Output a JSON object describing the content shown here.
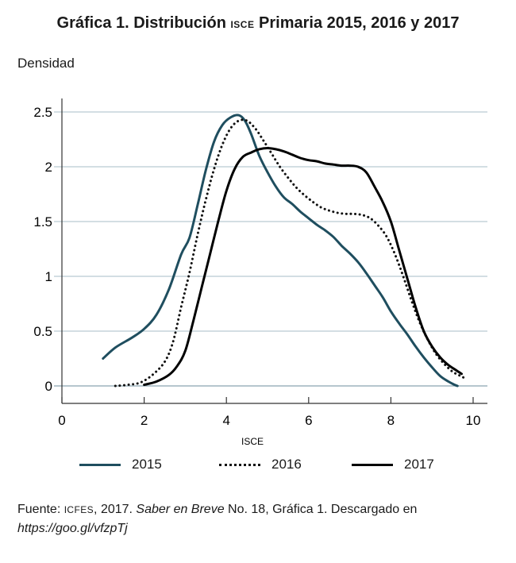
{
  "title": {
    "prefix": "Gráfica 1. Distribución",
    "smallcaps": "ISCE",
    "suffix": "Primaria 2015, 2016 y 2017"
  },
  "source": {
    "p1": "Fuente: ",
    "sc": "ICFES",
    "p2": ", 2017. ",
    "italic1": "Saber en Breve",
    "p3": " No. 18, Gráfica 1. Descargado en ",
    "italic2": "https://goo.gl/vfzpTj"
  },
  "colors": {
    "s2015": "#1f4e5f",
    "s2016": "#111111",
    "s2017": "#000000",
    "grid": "#b9cbd2"
  },
  "chart_data": {
    "type": "line",
    "xlabel": "ISCE",
    "ylabel": "Densidad",
    "xlim": [
      0,
      10
    ],
    "ylim": [
      0,
      2.5
    ],
    "xticks": [
      "0",
      "2",
      "4",
      "6",
      "8",
      "10"
    ],
    "yticks": [
      "0",
      "0.5",
      "1",
      "1.5",
      "2",
      "2.5"
    ],
    "grid": "horizontal",
    "legend_position": "bottom",
    "series": [
      {
        "name": "2015",
        "style": "solid",
        "points": [
          [
            1.0,
            0.25
          ],
          [
            1.3,
            0.35
          ],
          [
            1.7,
            0.44
          ],
          [
            2.0,
            0.52
          ],
          [
            2.3,
            0.65
          ],
          [
            2.6,
            0.88
          ],
          [
            2.9,
            1.2
          ],
          [
            3.1,
            1.35
          ],
          [
            3.3,
            1.65
          ],
          [
            3.5,
            1.97
          ],
          [
            3.7,
            2.23
          ],
          [
            3.9,
            2.38
          ],
          [
            4.1,
            2.45
          ],
          [
            4.3,
            2.47
          ],
          [
            4.45,
            2.42
          ],
          [
            4.6,
            2.3
          ],
          [
            4.8,
            2.1
          ],
          [
            5.0,
            1.95
          ],
          [
            5.2,
            1.82
          ],
          [
            5.4,
            1.72
          ],
          [
            5.6,
            1.66
          ],
          [
            5.8,
            1.59
          ],
          [
            6.0,
            1.53
          ],
          [
            6.2,
            1.47
          ],
          [
            6.4,
            1.42
          ],
          [
            6.6,
            1.36
          ],
          [
            6.8,
            1.28
          ],
          [
            7.0,
            1.21
          ],
          [
            7.2,
            1.13
          ],
          [
            7.4,
            1.03
          ],
          [
            7.6,
            0.92
          ],
          [
            7.8,
            0.81
          ],
          [
            8.0,
            0.68
          ],
          [
            8.2,
            0.57
          ],
          [
            8.4,
            0.47
          ],
          [
            8.6,
            0.36
          ],
          [
            8.8,
            0.26
          ],
          [
            9.0,
            0.17
          ],
          [
            9.2,
            0.09
          ],
          [
            9.4,
            0.04
          ],
          [
            9.55,
            0.01
          ],
          [
            9.62,
            0.0
          ]
        ]
      },
      {
        "name": "2016",
        "style": "dotted",
        "points": [
          [
            1.3,
            0.0
          ],
          [
            1.6,
            0.01
          ],
          [
            1.9,
            0.03
          ],
          [
            2.2,
            0.1
          ],
          [
            2.5,
            0.22
          ],
          [
            2.7,
            0.4
          ],
          [
            2.9,
            0.72
          ],
          [
            3.1,
            1.03
          ],
          [
            3.3,
            1.38
          ],
          [
            3.5,
            1.7
          ],
          [
            3.7,
            1.98
          ],
          [
            3.9,
            2.2
          ],
          [
            4.1,
            2.35
          ],
          [
            4.3,
            2.42
          ],
          [
            4.5,
            2.42
          ],
          [
            4.7,
            2.35
          ],
          [
            4.9,
            2.24
          ],
          [
            5.1,
            2.12
          ],
          [
            5.3,
            2.0
          ],
          [
            5.5,
            1.9
          ],
          [
            5.7,
            1.81
          ],
          [
            5.9,
            1.74
          ],
          [
            6.1,
            1.68
          ],
          [
            6.3,
            1.63
          ],
          [
            6.5,
            1.6
          ],
          [
            6.7,
            1.58
          ],
          [
            6.9,
            1.57
          ],
          [
            7.1,
            1.57
          ],
          [
            7.3,
            1.56
          ],
          [
            7.5,
            1.53
          ],
          [
            7.7,
            1.46
          ],
          [
            7.9,
            1.36
          ],
          [
            8.1,
            1.2
          ],
          [
            8.3,
            1.0
          ],
          [
            8.5,
            0.78
          ],
          [
            8.7,
            0.58
          ],
          [
            8.9,
            0.42
          ],
          [
            9.1,
            0.29
          ],
          [
            9.3,
            0.2
          ],
          [
            9.5,
            0.13
          ],
          [
            9.7,
            0.09
          ],
          [
            9.85,
            0.06
          ]
        ]
      },
      {
        "name": "2017",
        "style": "solid",
        "points": [
          [
            2.0,
            0.01
          ],
          [
            2.3,
            0.04
          ],
          [
            2.6,
            0.1
          ],
          [
            2.8,
            0.18
          ],
          [
            3.0,
            0.32
          ],
          [
            3.2,
            0.6
          ],
          [
            3.4,
            0.9
          ],
          [
            3.6,
            1.2
          ],
          [
            3.8,
            1.5
          ],
          [
            4.0,
            1.78
          ],
          [
            4.2,
            1.98
          ],
          [
            4.4,
            2.09
          ],
          [
            4.6,
            2.13
          ],
          [
            4.8,
            2.16
          ],
          [
            5.0,
            2.17
          ],
          [
            5.2,
            2.16
          ],
          [
            5.4,
            2.14
          ],
          [
            5.6,
            2.11
          ],
          [
            5.8,
            2.08
          ],
          [
            6.0,
            2.06
          ],
          [
            6.2,
            2.05
          ],
          [
            6.4,
            2.03
          ],
          [
            6.6,
            2.02
          ],
          [
            6.8,
            2.01
          ],
          [
            7.0,
            2.01
          ],
          [
            7.2,
            2.0
          ],
          [
            7.4,
            1.95
          ],
          [
            7.6,
            1.82
          ],
          [
            7.8,
            1.68
          ],
          [
            8.0,
            1.5
          ],
          [
            8.2,
            1.24
          ],
          [
            8.4,
            0.98
          ],
          [
            8.6,
            0.72
          ],
          [
            8.8,
            0.5
          ],
          [
            9.0,
            0.36
          ],
          [
            9.2,
            0.26
          ],
          [
            9.4,
            0.19
          ],
          [
            9.6,
            0.14
          ],
          [
            9.72,
            0.11
          ]
        ]
      }
    ]
  }
}
